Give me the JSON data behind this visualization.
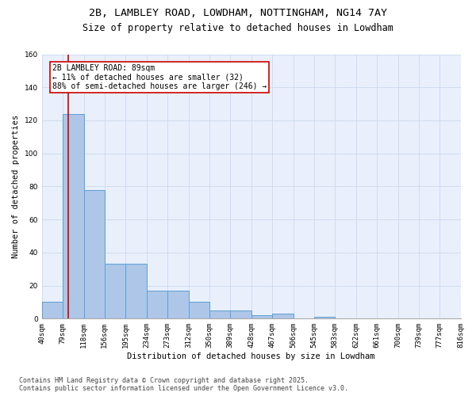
{
  "title": "2B, LAMBLEY ROAD, LOWDHAM, NOTTINGHAM, NG14 7AY",
  "subtitle": "Size of property relative to detached houses in Lowdham",
  "xlabel": "Distribution of detached houses by size in Lowdham",
  "ylabel": "Number of detached properties",
  "bar_values": [
    10,
    124,
    78,
    33,
    33,
    17,
    17,
    10,
    5,
    5,
    2,
    3,
    0,
    1,
    0,
    0,
    0,
    0,
    0,
    0
  ],
  "bin_edges": [
    40,
    79,
    118,
    156,
    195,
    234,
    273,
    312,
    350,
    389,
    428,
    467,
    506,
    545,
    583,
    622,
    661,
    700,
    739,
    777,
    816
  ],
  "bin_labels": [
    "40sqm",
    "79sqm",
    "118sqm",
    "156sqm",
    "195sqm",
    "234sqm",
    "273sqm",
    "312sqm",
    "350sqm",
    "389sqm",
    "428sqm",
    "467sqm",
    "506sqm",
    "545sqm",
    "583sqm",
    "622sqm",
    "661sqm",
    "700sqm",
    "739sqm",
    "777sqm",
    "816sqm"
  ],
  "bar_color": "#aec6e8",
  "bar_edge_color": "#5a9fd4",
  "property_line_x": 89,
  "property_line_color": "#cc0000",
  "annotation_line1": "2B LAMBLEY ROAD: 89sqm",
  "annotation_line2": "← 11% of detached houses are smaller (32)",
  "annotation_line3": "88% of semi-detached houses are larger (246) →",
  "annotation_box_color": "#ffffff",
  "annotation_box_edge": "#cc0000",
  "ylim": [
    0,
    160
  ],
  "yticks": [
    0,
    20,
    40,
    60,
    80,
    100,
    120,
    140,
    160
  ],
  "background_color": "#eaf0fb",
  "footer_text": "Contains HM Land Registry data © Crown copyright and database right 2025.\nContains public sector information licensed under the Open Government Licence v3.0.",
  "title_fontsize": 9.5,
  "subtitle_fontsize": 8.5,
  "xlabel_fontsize": 7.5,
  "ylabel_fontsize": 7.5,
  "tick_fontsize": 6.5,
  "annotation_fontsize": 7,
  "footer_fontsize": 6
}
